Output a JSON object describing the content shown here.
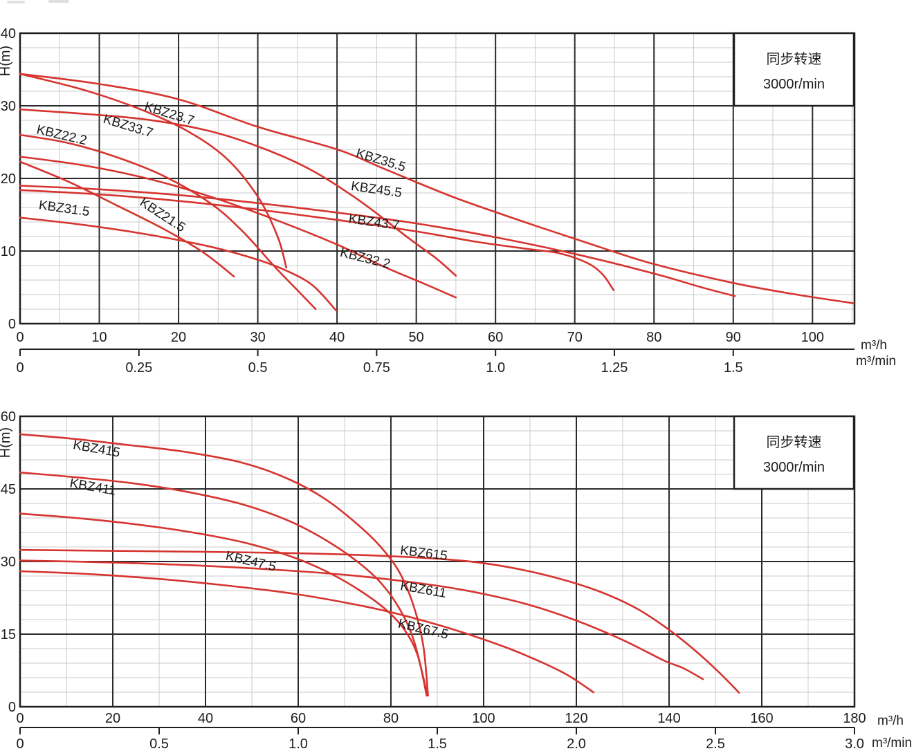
{
  "figure_title": "KBZ pump performance curves (H-Q)",
  "colors": {
    "curve": "#d6342f",
    "grid_major": "#2b2b2b",
    "grid_minor": "#cbcbcb",
    "border": "#1f1f1f",
    "text": "#1c1c1c",
    "legend_bg": "#ffffff"
  },
  "legend": {
    "line1": "同步转速",
    "line2": "3000r/min"
  },
  "chart_data": [
    {
      "type": "line",
      "ylabel": "H(m)",
      "x_unit_primary": "m³/h",
      "x_unit_secondary": "m³/min",
      "xlim": [
        0,
        105.3
      ],
      "ylim": [
        0,
        40
      ],
      "y_ticks": [
        0,
        10,
        20,
        30,
        40
      ],
      "x_ticks_primary": [
        0,
        10,
        20,
        30,
        40,
        50,
        60,
        70,
        80,
        90,
        100
      ],
      "x_ticks_secondary": [
        {
          "q": 0,
          "label": "0"
        },
        {
          "q": 15,
          "label": "0.25"
        },
        {
          "q": 30,
          "label": "0.5"
        },
        {
          "q": 45,
          "label": "0.75"
        },
        {
          "q": 60,
          "label": "1.0"
        },
        {
          "q": 75,
          "label": "1.25"
        },
        {
          "q": 90,
          "label": "1.5"
        }
      ],
      "grid": {
        "x_minor_step": 5,
        "y_minor_step": 2,
        "grid_on": true
      },
      "legend": {
        "line1": "同步转速",
        "line2": "3000r/min",
        "position": "top-right"
      },
      "series": [
        {
          "name": "KBZ35.5",
          "points": [
            [
              0,
              34.4
            ],
            [
              10,
              33.0
            ],
            [
              20,
              30.9
            ],
            [
              30,
              27.1
            ],
            [
              40,
              24.0
            ],
            [
              46,
              21.3
            ],
            [
              55,
              17.3
            ],
            [
              65,
              13.5
            ],
            [
              73,
              10.6
            ],
            [
              80,
              8.2
            ],
            [
              90,
              5.6
            ],
            [
              98,
              4.0
            ],
            [
              105.2,
              2.8
            ]
          ],
          "label": {
            "q": 42.3,
            "h": 23.0,
            "angle": 17
          }
        },
        {
          "name": "KBZ23.7",
          "points": [
            [
              0,
              34.4
            ],
            [
              8,
              32.2
            ],
            [
              15,
              29.6
            ],
            [
              21,
              26.6
            ],
            [
              26,
              22.8
            ],
            [
              30,
              17.5
            ],
            [
              32.5,
              12.0
            ],
            [
              33.6,
              7.7
            ]
          ],
          "label": {
            "q": 15.6,
            "h": 29.4,
            "angle": 17
          }
        },
        {
          "name": "KBZ33.7",
          "points": [
            [
              0,
              29.5
            ],
            [
              8,
              28.9
            ],
            [
              16,
              28.1
            ],
            [
              24,
              26.5
            ],
            [
              31,
              24.0
            ],
            [
              37,
              21.0
            ],
            [
              43,
              16.8
            ],
            [
              49,
              11.8
            ],
            [
              52.5,
              9.0
            ],
            [
              55,
              6.6
            ]
          ],
          "label": {
            "q": 10.4,
            "h": 27.7,
            "angle": 17
          }
        },
        {
          "name": "KBZ22.2",
          "points": [
            [
              0,
              26.0
            ],
            [
              6,
              24.9
            ],
            [
              12,
              23.0
            ],
            [
              18,
              20.4
            ],
            [
              24,
              16.6
            ],
            [
              28,
              12.8
            ],
            [
              32,
              8.0
            ],
            [
              35,
              4.6
            ],
            [
              37.3,
              2.0
            ]
          ],
          "label": {
            "q": 2.0,
            "h": 26.2,
            "angle": 13
          }
        },
        {
          "name": "KBZ32.2",
          "points": [
            [
              0,
              23.0
            ],
            [
              8,
              21.8
            ],
            [
              16,
              20.0
            ],
            [
              24,
              17.5
            ],
            [
              32,
              14.4
            ],
            [
              40,
              10.9
            ],
            [
              46,
              7.8
            ],
            [
              51,
              5.5
            ],
            [
              55,
              3.6
            ]
          ],
          "label": {
            "q": 40.3,
            "h": 9.3,
            "angle": 14
          }
        },
        {
          "name": "KBZ21.5",
          "points": [
            [
              0,
              22.3
            ],
            [
              6,
              19.6
            ],
            [
              12,
              16.4
            ],
            [
              18,
              13.1
            ],
            [
              23,
              9.9
            ],
            [
              27,
              6.5
            ]
          ],
          "label": {
            "q": 15.0,
            "h": 16.4,
            "angle": 33
          }
        },
        {
          "name": "KBZ45.5",
          "points": [
            [
              0,
              19.0
            ],
            [
              10,
              18.5
            ],
            [
              20,
              17.7
            ],
            [
              30,
              16.6
            ],
            [
              40,
              15.3
            ],
            [
              50,
              13.8
            ],
            [
              60,
              11.9
            ],
            [
              70,
              9.6
            ],
            [
              80,
              6.9
            ],
            [
              86,
              5.0
            ],
            [
              90.2,
              3.8
            ]
          ],
          "label": {
            "q": 41.7,
            "h": 18.4,
            "angle": 8
          }
        },
        {
          "name": "KBZ43.7",
          "points": [
            [
              0,
              18.4
            ],
            [
              10,
              17.8
            ],
            [
              20,
              16.9
            ],
            [
              30,
              15.7
            ],
            [
              40,
              14.3
            ],
            [
              50,
              12.7
            ],
            [
              58,
              11.2
            ],
            [
              64,
              10.3
            ],
            [
              68,
              9.7
            ],
            [
              71.5,
              8.4
            ],
            [
              73.5,
              6.8
            ],
            [
              74.9,
              4.6
            ]
          ],
          "label": {
            "q": 41.4,
            "h": 13.9,
            "angle": 8
          }
        },
        {
          "name": "KBZ31.5",
          "points": [
            [
              0,
              14.6
            ],
            [
              8,
              13.6
            ],
            [
              16,
              12.3
            ],
            [
              24,
              10.6
            ],
            [
              30,
              8.8
            ],
            [
              34,
              7.1
            ],
            [
              37,
              5.2
            ],
            [
              39.9,
              1.8
            ]
          ],
          "label": {
            "q": 2.3,
            "h": 15.8,
            "angle": 8
          }
        }
      ]
    },
    {
      "type": "line",
      "ylabel": "H(m)",
      "x_unit_primary": "m³/h",
      "x_unit_secondary": "m³/min",
      "xlim": [
        0,
        180
      ],
      "ylim": [
        0,
        60
      ],
      "y_ticks": [
        0,
        15,
        30,
        45,
        60
      ],
      "x_ticks_primary": [
        0,
        20,
        40,
        60,
        80,
        100,
        120,
        140,
        160,
        180
      ],
      "x_ticks_secondary": [
        {
          "q": 0,
          "label": "0"
        },
        {
          "q": 30,
          "label": "0.5"
        },
        {
          "q": 60,
          "label": "1.0"
        },
        {
          "q": 90,
          "label": "1.5"
        },
        {
          "q": 120,
          "label": "2.0"
        },
        {
          "q": 150,
          "label": "2.5"
        },
        {
          "q": 180,
          "label": "3.0"
        }
      ],
      "grid": {
        "x_minor_step": 10,
        "y_minor_step": 3,
        "grid_on": true
      },
      "legend": {
        "line1": "同步转速",
        "line2": "3000r/min",
        "position": "top-right"
      },
      "series": [
        {
          "name": "KBZ415",
          "points": [
            [
              0,
              56.3
            ],
            [
              12,
              55.3
            ],
            [
              24,
              54.0
            ],
            [
              36,
              52.6
            ],
            [
              48,
              50.4
            ],
            [
              58,
              47.0
            ],
            [
              66,
              42.8
            ],
            [
              73,
              37.5
            ],
            [
              78,
              32.8
            ],
            [
              82,
              27.5
            ],
            [
              85,
              20.5
            ],
            [
              87,
              12.5
            ],
            [
              88,
              2.3
            ]
          ],
          "label": {
            "q": 11.3,
            "h": 53.3,
            "angle": 10
          }
        },
        {
          "name": "KBZ411",
          "points": [
            [
              0,
              48.4
            ],
            [
              12,
              47.4
            ],
            [
              24,
              46.2
            ],
            [
              36,
              44.4
            ],
            [
              48,
              41.8
            ],
            [
              58,
              38.4
            ],
            [
              66,
              34.4
            ],
            [
              73,
              29.8
            ],
            [
              78,
              25.4
            ],
            [
              82,
              20.0
            ],
            [
              85,
              13.5
            ],
            [
              87.9,
              2.3
            ]
          ],
          "label": {
            "q": 10.6,
            "h": 45.4,
            "angle": 10
          }
        },
        {
          "name": "KBZ47.5",
          "points": [
            [
              0,
              39.9
            ],
            [
              12,
              39.0
            ],
            [
              24,
              37.8
            ],
            [
              36,
              36.2
            ],
            [
              48,
              34.0
            ],
            [
              58,
              31.2
            ],
            [
              66,
              28.0
            ],
            [
              73,
              24.2
            ],
            [
              79,
              20.0
            ],
            [
              83,
              15.8
            ],
            [
              85.8,
              10.5
            ],
            [
              87.7,
              2.3
            ]
          ],
          "label": {
            "q": 44.2,
            "h": 30.4,
            "angle": 13
          }
        },
        {
          "name": "KBZ615",
          "points": [
            [
              0,
              32.4
            ],
            [
              20,
              32.2
            ],
            [
              40,
              32.0
            ],
            [
              60,
              31.7
            ],
            [
              80,
              31.1
            ],
            [
              95,
              30.2
            ],
            [
              105,
              28.9
            ],
            [
              115,
              26.8
            ],
            [
              125,
              23.8
            ],
            [
              133,
              20.3
            ],
            [
              140,
              15.9
            ],
            [
              146,
              11.3
            ],
            [
              151,
              6.9
            ],
            [
              155.1,
              2.9
            ]
          ],
          "label": {
            "q": 81.9,
            "h": 31.5,
            "angle": 7
          }
        },
        {
          "name": "KBZ611",
          "points": [
            [
              0,
              30.2
            ],
            [
              20,
              29.8
            ],
            [
              40,
              29.1
            ],
            [
              60,
              28.0
            ],
            [
              75,
              26.8
            ],
            [
              90,
              25.0
            ],
            [
              100,
              23.3
            ],
            [
              110,
              21.0
            ],
            [
              120,
              17.8
            ],
            [
              130,
              13.8
            ],
            [
              139,
              9.5
            ],
            [
              143,
              8.0
            ],
            [
              147.3,
              5.7
            ]
          ],
          "label": {
            "q": 81.9,
            "h": 24.2,
            "angle": 10
          }
        },
        {
          "name": "KBZ67.5",
          "points": [
            [
              0,
              28.0
            ],
            [
              15,
              27.4
            ],
            [
              30,
              26.4
            ],
            [
              45,
              25.0
            ],
            [
              60,
              23.2
            ],
            [
              75,
              20.6
            ],
            [
              85,
              18.3
            ],
            [
              95,
              15.5
            ],
            [
              105,
              12.2
            ],
            [
              112,
              9.4
            ],
            [
              118,
              6.6
            ],
            [
              123.7,
              3.0
            ]
          ],
          "label": {
            "q": 81.4,
            "h": 16.4,
            "angle": 13
          }
        }
      ]
    }
  ]
}
